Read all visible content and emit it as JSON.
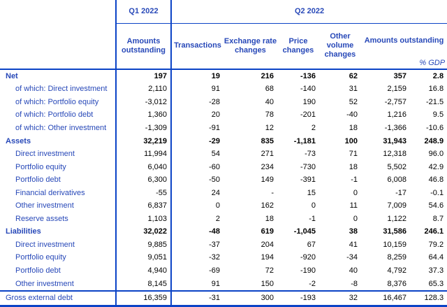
{
  "colors": {
    "line_blue": "#0b43c6",
    "label_blue": "#2748b8",
    "number_black": "#000000"
  },
  "table": {
    "header": {
      "q1_label": "Q1 2022",
      "q2_label": "Q2 2022",
      "columns": [
        "Amounts outstanding",
        "Transactions",
        "Exchange rate changes",
        "Price changes",
        "Other volume changes",
        "Amounts outstanding"
      ],
      "gdp_label": "% GDP"
    },
    "rows": [
      {
        "label": "Net",
        "section": true,
        "indent": false,
        "topline": false,
        "values": [
          "197",
          "19",
          "216",
          "-136",
          "62",
          "357",
          "2.8"
        ]
      },
      {
        "label": "of which: Direct investment",
        "section": false,
        "indent": true,
        "topline": false,
        "values": [
          "2,110",
          "91",
          "68",
          "-140",
          "31",
          "2,159",
          "16.8"
        ]
      },
      {
        "label": "of which: Portfolio equity",
        "section": false,
        "indent": true,
        "topline": false,
        "values": [
          "-3,012",
          "-28",
          "40",
          "190",
          "52",
          "-2,757",
          "-21.5"
        ]
      },
      {
        "label": "of which: Portfolio debt",
        "section": false,
        "indent": true,
        "topline": false,
        "values": [
          "1,360",
          "20",
          "78",
          "-201",
          "-40",
          "1,216",
          "9.5"
        ]
      },
      {
        "label": "of which: Other investment",
        "section": false,
        "indent": true,
        "topline": false,
        "values": [
          "-1,309",
          "-91",
          "12",
          "2",
          "18",
          "-1,366",
          "-10.6"
        ]
      },
      {
        "label": "Assets",
        "section": true,
        "indent": false,
        "topline": false,
        "values": [
          "32,219",
          "-29",
          "835",
          "-1,181",
          "100",
          "31,943",
          "248.9"
        ]
      },
      {
        "label": "Direct investment",
        "section": false,
        "indent": true,
        "topline": false,
        "values": [
          "11,994",
          "54",
          "271",
          "-73",
          "71",
          "12,318",
          "96.0"
        ]
      },
      {
        "label": "Portfolio equity",
        "section": false,
        "indent": true,
        "topline": false,
        "values": [
          "6,040",
          "-60",
          "234",
          "-730",
          "18",
          "5,502",
          "42.9"
        ]
      },
      {
        "label": "Portfolio debt",
        "section": false,
        "indent": true,
        "topline": false,
        "values": [
          "6,300",
          "-50",
          "149",
          "-391",
          "-1",
          "6,008",
          "46.8"
        ]
      },
      {
        "label": "Financial derivatives",
        "section": false,
        "indent": true,
        "topline": false,
        "values": [
          "-55",
          "24",
          "-",
          "15",
          "0",
          "-17",
          "-0.1"
        ]
      },
      {
        "label": "Other investment",
        "section": false,
        "indent": true,
        "topline": false,
        "values": [
          "6,837",
          "0",
          "162",
          "0",
          "11",
          "7,009",
          "54.6"
        ]
      },
      {
        "label": "Reserve assets",
        "section": false,
        "indent": true,
        "topline": false,
        "values": [
          "1,103",
          "2",
          "18",
          "-1",
          "0",
          "1,122",
          "8.7"
        ]
      },
      {
        "label": "Liabilities",
        "section": true,
        "indent": false,
        "topline": false,
        "values": [
          "32,022",
          "-48",
          "619",
          "-1,045",
          "38",
          "31,586",
          "246.1"
        ]
      },
      {
        "label": "Direct investment",
        "section": false,
        "indent": true,
        "topline": false,
        "values": [
          "9,885",
          "-37",
          "204",
          "67",
          "41",
          "10,159",
          "79.2"
        ]
      },
      {
        "label": "Portfolio equity",
        "section": false,
        "indent": true,
        "topline": false,
        "values": [
          "9,051",
          "-32",
          "194",
          "-920",
          "-34",
          "8,259",
          "64.4"
        ]
      },
      {
        "label": "Portfolio debt",
        "section": false,
        "indent": true,
        "topline": false,
        "values": [
          "4,940",
          "-69",
          "72",
          "-190",
          "40",
          "4,792",
          "37.3"
        ]
      },
      {
        "label": "Other investment",
        "section": false,
        "indent": true,
        "topline": false,
        "values": [
          "8,145",
          "91",
          "150",
          "-2",
          "-8",
          "8,376",
          "65.3"
        ]
      },
      {
        "label": "Gross external debt",
        "section": false,
        "indent": false,
        "topline": true,
        "values": [
          "16,359",
          "-31",
          "300",
          "-193",
          "32",
          "16,467",
          "128.3"
        ]
      }
    ]
  }
}
